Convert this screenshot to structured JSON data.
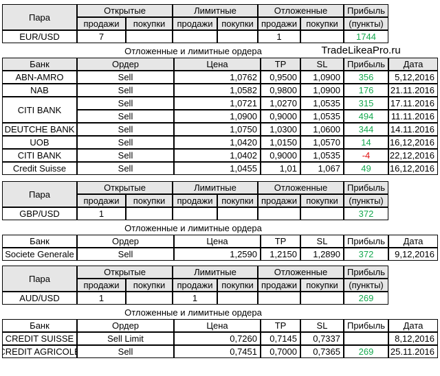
{
  "brand": "TradeLikeaPro.ru",
  "section_title": "Отложенные и лимитные ордера",
  "summary_headers": {
    "pair": "Пара",
    "open": "Открытые",
    "limit": "Лимитные",
    "pending": "Отложенные",
    "profit": "Прибыль",
    "sell": "продажи",
    "buy": "покупки",
    "points": "(пункты)"
  },
  "order_headers": {
    "bank": "Банк",
    "order": "Ордер",
    "price": "Цена",
    "tp": "TP",
    "sl": "SL",
    "profit": "Прибыль",
    "date": "Дата"
  },
  "eurusd": {
    "summary": {
      "pair": "EUR/USD",
      "open_sell": "7",
      "open_buy": "",
      "limit_sell": "",
      "limit_buy": "",
      "pending_sell": "1",
      "pending_buy": "",
      "profit": "1744"
    },
    "orders": [
      {
        "bank": "ABN-AMRO",
        "order": "Sell",
        "price": "1,0762",
        "tp": "0,9500",
        "sl": "1,0900",
        "profit": "356",
        "date": "5,12,2016"
      },
      {
        "bank": "NAB",
        "order": "Sell",
        "price": "1,0582",
        "tp": "0,9800",
        "sl": "1,0900",
        "profit": "176",
        "date": "21.11.2016"
      },
      {
        "bank": "CITI BANK",
        "order": "Sell",
        "price": "1,0721",
        "tp": "1,0270",
        "sl": "1,0535",
        "profit": "315",
        "date": "17.11.2016"
      },
      {
        "bank": "",
        "order": "Sell",
        "price": "1,0900",
        "tp": "0,9000",
        "sl": "1,0535",
        "profit": "494",
        "date": "11.11.2016"
      },
      {
        "bank": "DEUTCHE BANK",
        "order": "Sell",
        "price": "1,0750",
        "tp": "1,0300",
        "sl": "1,0600",
        "profit": "344",
        "date": "14.11.2016"
      },
      {
        "bank": "UOB",
        "order": "Sell",
        "price": "1,0420",
        "tp": "1,0150",
        "sl": "1,0570",
        "profit": "14",
        "date": "16,12,2016"
      },
      {
        "bank": "CITI BANK",
        "order": "Sell",
        "price": "1,0402",
        "tp": "0,9000",
        "sl": "1,0535",
        "profit": "-4",
        "date": "22,12,2016"
      },
      {
        "bank": "Credit Suisse",
        "order": "Sell",
        "price": "1,0455",
        "tp": "1,01",
        "sl": "1,067",
        "profit": "49",
        "date": "16,12,2016"
      }
    ]
  },
  "gbpusd": {
    "summary": {
      "pair": "GBP/USD",
      "open_sell": "1",
      "open_buy": "",
      "limit_sell": "",
      "limit_buy": "",
      "pending_sell": "",
      "pending_buy": "",
      "profit": "372"
    },
    "orders": [
      {
        "bank": "Societe Generale",
        "order": "Sell",
        "price": "1,2590",
        "tp": "1,2150",
        "sl": "1,2890",
        "profit": "372",
        "date": "9,12,2016"
      }
    ]
  },
  "audusd": {
    "summary": {
      "pair": "AUD/USD",
      "open_sell": "1",
      "open_buy": "",
      "limit_sell": "1",
      "limit_buy": "",
      "pending_sell": "",
      "pending_buy": "",
      "profit": "269"
    },
    "orders": [
      {
        "bank": "CREDIT SUISSE",
        "order": "Sell Limit",
        "price": "0,7260",
        "tp": "0,7145",
        "sl": "0,7337",
        "profit": "",
        "date": "8,12,2016"
      },
      {
        "bank": "CREDIT AGRICOLE",
        "order": "Sell",
        "price": "0,7451",
        "tp": "0,7000",
        "sl": "0,7365",
        "profit": "269",
        "date": "25.11.2016"
      }
    ]
  },
  "colors": {
    "positive": "#14a84e",
    "negative": "#e01010",
    "header_bg": "#e6e6e6"
  }
}
